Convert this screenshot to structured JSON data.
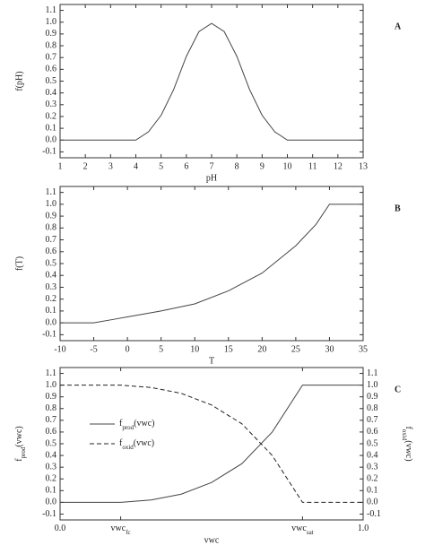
{
  "chart_data": [
    {
      "type": "line",
      "panel_label": "A",
      "xlabel": "pH",
      "ylabel": "f(pH)",
      "xlim": [
        1,
        13
      ],
      "xticks": [
        1,
        2,
        3,
        4,
        5,
        6,
        7,
        8,
        9,
        10,
        11,
        12,
        13
      ],
      "ylim": [
        -0.15,
        1.15
      ],
      "yticks": [
        -0.1,
        {
          "value": 0,
          "label": "0.0"
        },
        0.1,
        0.2,
        0.3,
        0.4,
        0.5,
        0.6,
        0.7,
        0.8,
        0.9,
        {
          "value": 1,
          "label": "1.0"
        },
        1.1
      ],
      "x": [
        1,
        2,
        3,
        4,
        4.5,
        5,
        5.5,
        6,
        6.5,
        7,
        7.5,
        8,
        8.5,
        9,
        9.5,
        10,
        11,
        12,
        13
      ],
      "series": [
        {
          "color": "#444444",
          "dash": false,
          "values": [
            0,
            0,
            0,
            0,
            0.07,
            0.21,
            0.43,
            0.71,
            0.92,
            0.99,
            0.92,
            0.71,
            0.43,
            0.21,
            0.07,
            0,
            0,
            0,
            0
          ]
        }
      ]
    },
    {
      "type": "line",
      "panel_label": "B",
      "xlabel": "T",
      "ylabel": "f(T)",
      "xlim": [
        -10,
        35
      ],
      "xticks": [
        -10,
        -5,
        0,
        5,
        10,
        15,
        20,
        25,
        30,
        35
      ],
      "ylim": [
        -0.15,
        1.15
      ],
      "yticks": [
        -0.1,
        {
          "value": 0,
          "label": "0.0"
        },
        0.1,
        0.2,
        0.3,
        0.4,
        0.5,
        0.6,
        0.7,
        0.8,
        0.9,
        {
          "value": 1,
          "label": "1.0"
        },
        1.1
      ],
      "x": [
        -10,
        -5,
        -2,
        0,
        2,
        5,
        10,
        15,
        20,
        25,
        28,
        30,
        35
      ],
      "series": [
        {
          "color": "#444444",
          "dash": false,
          "values": [
            0,
            0,
            0.03,
            0.05,
            0.07,
            0.1,
            0.16,
            0.27,
            0.42,
            0.65,
            0.83,
            1,
            1
          ]
        }
      ]
    },
    {
      "type": "line",
      "panel_label": "C",
      "xlabel": "vwc",
      "ylabel": [
        "f",
        "prod",
        "(vwc)"
      ],
      "y2label": [
        "f",
        "oxid",
        "(vwc)"
      ],
      "xlim": [
        0,
        1
      ],
      "xticks": [
        {
          "value": 0,
          "label": [
            "0.0",
            ""
          ]
        },
        {
          "value": 0.2,
          "label": [
            "vwc",
            "fc"
          ]
        },
        {
          "value": 0.8,
          "label": [
            "vwc",
            "sat"
          ]
        },
        {
          "value": 1,
          "label": [
            "1.0",
            ""
          ]
        }
      ],
      "ylim": [
        -0.15,
        1.15
      ],
      "yticks": [
        -0.1,
        {
          "value": 0,
          "label": "0.0"
        },
        0.1,
        0.2,
        0.3,
        0.4,
        0.5,
        0.6,
        0.7,
        0.8,
        0.9,
        {
          "value": 1,
          "label": "1.0"
        },
        1.1
      ],
      "y2lim": [
        -0.15,
        1.15
      ],
      "y2ticks": [
        -0.1,
        {
          "value": 0,
          "label": "0.0"
        },
        0.1,
        0.2,
        0.3,
        0.4,
        0.5,
        0.6,
        0.7,
        0.8,
        0.9,
        {
          "value": 1,
          "label": "1.0"
        },
        1.1
      ],
      "x": [
        0,
        0.2,
        0.3,
        0.4,
        0.5,
        0.6,
        0.7,
        0.8,
        0.9,
        1
      ],
      "series": [
        {
          "name": [
            "f",
            "prod",
            "(vwc)"
          ],
          "color": "#444444",
          "dash": false,
          "values": [
            0,
            0,
            0.02,
            0.07,
            0.17,
            0.33,
            0.6,
            1,
            1,
            1
          ]
        },
        {
          "name": [
            "f",
            "oxid",
            "(vwc)"
          ],
          "color": "#222222",
          "dash": true,
          "axis": "y2",
          "values": [
            1,
            1,
            0.98,
            0.93,
            0.83,
            0.67,
            0.4,
            0,
            0,
            0
          ]
        }
      ]
    }
  ]
}
